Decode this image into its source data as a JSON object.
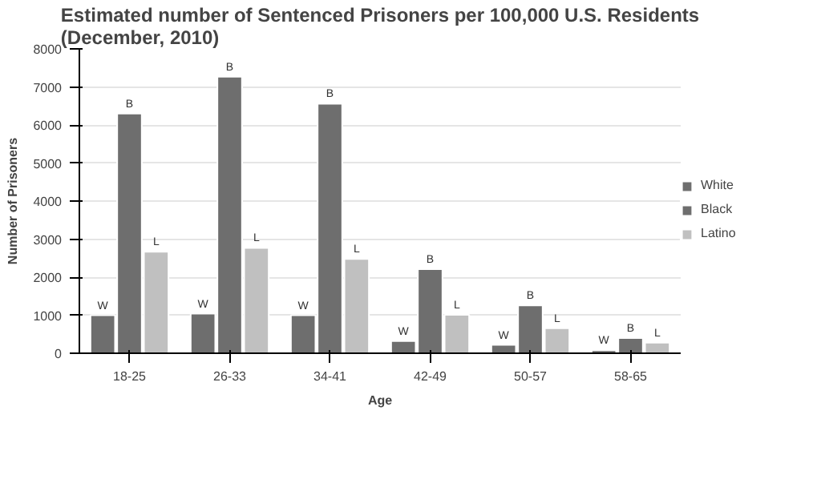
{
  "chart_data": {
    "type": "bar",
    "title": "Estimated number of Sentenced Prisoners per 100,000 U.S. Residents\n(December, 2010)",
    "xlabel": "Age",
    "ylabel": "Number of Prisoners",
    "categories": [
      "18-25",
      "26-33",
      "34-41",
      "42-49",
      "50-57",
      "58-65"
    ],
    "series": [
      {
        "name": "White",
        "color": "#6e6e6e",
        "values": [
          1000,
          1040,
          1000,
          320,
          220,
          80
        ],
        "value_labels": [
          "W",
          "W",
          "W",
          "W",
          "W",
          "W"
        ]
      },
      {
        "name": "Black",
        "color": "#6e6e6e",
        "values": [
          6300,
          7270,
          6560,
          2210,
          1260,
          400
        ],
        "value_labels": [
          "B",
          "B",
          "B",
          "B",
          "B",
          "B"
        ]
      },
      {
        "name": "Latino",
        "color": "#c0c0c0",
        "values": [
          2670,
          2770,
          2480,
          1010,
          660,
          280
        ],
        "value_labels": [
          "L",
          "L",
          "L",
          "L",
          "L",
          "L"
        ]
      }
    ],
    "ylim": [
      0,
      8000
    ],
    "yticks": [
      0,
      1000,
      2000,
      3000,
      4000,
      5000,
      6000,
      7000,
      8000
    ],
    "grid": "y",
    "legend": "right"
  }
}
